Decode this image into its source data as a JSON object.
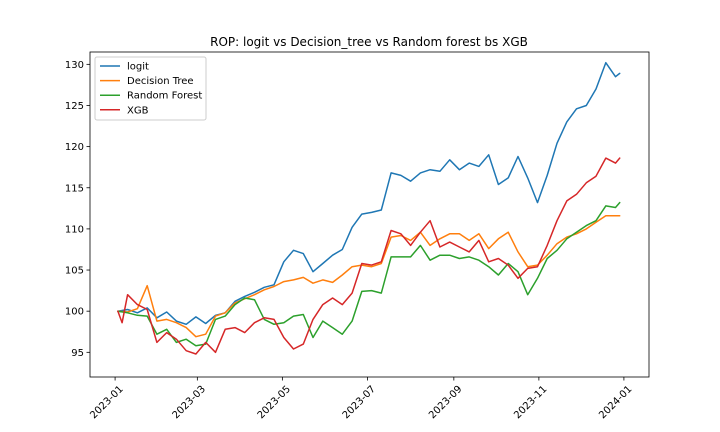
{
  "chart_data": {
    "type": "line",
    "title": "ROP: logit vs Decision_tree vs Random forest bs XGB",
    "xlabel": "",
    "ylabel": "",
    "x_ticks": [
      "2023-01",
      "2023-03",
      "2023-05",
      "2023-07",
      "2023-09",
      "2023-11",
      "2024-01"
    ],
    "y_ticks": [
      95,
      100,
      105,
      110,
      115,
      120,
      125,
      130
    ],
    "xlim": [
      "2022-12-14",
      "2024-01-19"
    ],
    "ylim": [
      92,
      131.5
    ],
    "grid": false,
    "legend_position": "upper-left",
    "series": [
      {
        "name": "logit",
        "color": "#1f77b4",
        "points": [
          [
            "2023-01-03",
            100.0
          ],
          [
            "2023-01-10",
            100.2
          ],
          [
            "2023-01-17",
            99.8
          ],
          [
            "2023-01-24",
            100.4
          ],
          [
            "2023-01-31",
            99.2
          ],
          [
            "2023-02-07",
            99.9
          ],
          [
            "2023-02-14",
            98.8
          ],
          [
            "2023-02-21",
            98.4
          ],
          [
            "2023-02-28",
            99.3
          ],
          [
            "2023-03-07",
            98.5
          ],
          [
            "2023-03-14",
            99.5
          ],
          [
            "2023-03-21",
            99.8
          ],
          [
            "2023-03-28",
            101.2
          ],
          [
            "2023-04-04",
            101.8
          ],
          [
            "2023-04-11",
            102.3
          ],
          [
            "2023-04-18",
            102.9
          ],
          [
            "2023-04-25",
            103.2
          ],
          [
            "2023-05-02",
            106.0
          ],
          [
            "2023-05-09",
            107.4
          ],
          [
            "2023-05-16",
            107.0
          ],
          [
            "2023-05-23",
            104.8
          ],
          [
            "2023-05-30",
            105.8
          ],
          [
            "2023-06-06",
            106.8
          ],
          [
            "2023-06-13",
            107.5
          ],
          [
            "2023-06-20",
            110.2
          ],
          [
            "2023-06-27",
            111.8
          ],
          [
            "2023-07-04",
            112.0
          ],
          [
            "2023-07-11",
            112.3
          ],
          [
            "2023-07-18",
            116.8
          ],
          [
            "2023-07-25",
            116.5
          ],
          [
            "2023-08-01",
            115.8
          ],
          [
            "2023-08-08",
            116.8
          ],
          [
            "2023-08-15",
            117.2
          ],
          [
            "2023-08-22",
            117.0
          ],
          [
            "2023-08-29",
            118.4
          ],
          [
            "2023-09-05",
            117.2
          ],
          [
            "2023-09-12",
            118.0
          ],
          [
            "2023-09-19",
            117.6
          ],
          [
            "2023-09-26",
            119.0
          ],
          [
            "2023-10-03",
            115.4
          ],
          [
            "2023-10-10",
            116.2
          ],
          [
            "2023-10-17",
            118.8
          ],
          [
            "2023-10-24",
            116.2
          ],
          [
            "2023-10-31",
            113.2
          ],
          [
            "2023-11-07",
            116.5
          ],
          [
            "2023-11-14",
            120.4
          ],
          [
            "2023-11-21",
            123.0
          ],
          [
            "2023-11-28",
            124.6
          ],
          [
            "2023-12-05",
            125.0
          ],
          [
            "2023-12-12",
            127.0
          ],
          [
            "2023-12-19",
            130.2
          ],
          [
            "2023-12-26",
            128.5
          ],
          [
            "2023-12-29",
            128.9
          ]
        ]
      },
      {
        "name": "Decision Tree",
        "color": "#ff7f0e",
        "points": [
          [
            "2023-01-03",
            100.0
          ],
          [
            "2023-01-10",
            99.9
          ],
          [
            "2023-01-17",
            100.3
          ],
          [
            "2023-01-24",
            103.1
          ],
          [
            "2023-01-31",
            98.8
          ],
          [
            "2023-02-07",
            99.0
          ],
          [
            "2023-02-14",
            98.6
          ],
          [
            "2023-02-21",
            98.0
          ],
          [
            "2023-02-28",
            96.9
          ],
          [
            "2023-03-07",
            97.2
          ],
          [
            "2023-03-14",
            99.4
          ],
          [
            "2023-03-21",
            99.8
          ],
          [
            "2023-03-28",
            101.0
          ],
          [
            "2023-04-04",
            101.5
          ],
          [
            "2023-04-11",
            102.0
          ],
          [
            "2023-04-18",
            102.6
          ],
          [
            "2023-04-25",
            103.0
          ],
          [
            "2023-05-02",
            103.6
          ],
          [
            "2023-05-09",
            103.8
          ],
          [
            "2023-05-16",
            104.1
          ],
          [
            "2023-05-23",
            103.4
          ],
          [
            "2023-05-30",
            103.8
          ],
          [
            "2023-06-06",
            103.5
          ],
          [
            "2023-06-13",
            104.4
          ],
          [
            "2023-06-20",
            105.4
          ],
          [
            "2023-06-27",
            105.6
          ],
          [
            "2023-07-04",
            105.4
          ],
          [
            "2023-07-11",
            105.8
          ],
          [
            "2023-07-18",
            109.0
          ],
          [
            "2023-07-25",
            109.2
          ],
          [
            "2023-08-01",
            108.6
          ],
          [
            "2023-08-08",
            109.6
          ],
          [
            "2023-08-15",
            108.0
          ],
          [
            "2023-08-22",
            108.8
          ],
          [
            "2023-08-29",
            109.4
          ],
          [
            "2023-09-05",
            109.4
          ],
          [
            "2023-09-12",
            108.6
          ],
          [
            "2023-09-19",
            109.4
          ],
          [
            "2023-09-26",
            107.6
          ],
          [
            "2023-10-03",
            108.8
          ],
          [
            "2023-10-10",
            109.6
          ],
          [
            "2023-10-17",
            107.2
          ],
          [
            "2023-10-24",
            105.4
          ],
          [
            "2023-10-31",
            105.6
          ],
          [
            "2023-11-07",
            106.8
          ],
          [
            "2023-11-14",
            108.2
          ],
          [
            "2023-11-21",
            109.0
          ],
          [
            "2023-11-28",
            109.4
          ],
          [
            "2023-12-05",
            110.0
          ],
          [
            "2023-12-12",
            110.8
          ],
          [
            "2023-12-19",
            111.6
          ],
          [
            "2023-12-26",
            111.6
          ],
          [
            "2023-12-29",
            111.6
          ]
        ]
      },
      {
        "name": "Random Forest",
        "color": "#2ca02c",
        "points": [
          [
            "2023-01-03",
            100.0
          ],
          [
            "2023-01-10",
            99.8
          ],
          [
            "2023-01-17",
            99.5
          ],
          [
            "2023-01-24",
            99.4
          ],
          [
            "2023-01-31",
            97.2
          ],
          [
            "2023-02-07",
            97.8
          ],
          [
            "2023-02-14",
            96.2
          ],
          [
            "2023-02-21",
            96.6
          ],
          [
            "2023-02-28",
            95.8
          ],
          [
            "2023-03-07",
            96.0
          ],
          [
            "2023-03-14",
            99.0
          ],
          [
            "2023-03-21",
            99.4
          ],
          [
            "2023-03-28",
            100.8
          ],
          [
            "2023-04-04",
            101.6
          ],
          [
            "2023-04-11",
            101.4
          ],
          [
            "2023-04-18",
            99.0
          ],
          [
            "2023-04-25",
            98.4
          ],
          [
            "2023-05-02",
            98.6
          ],
          [
            "2023-05-09",
            99.4
          ],
          [
            "2023-05-16",
            99.6
          ],
          [
            "2023-05-23",
            96.8
          ],
          [
            "2023-05-30",
            98.8
          ],
          [
            "2023-06-06",
            98.0
          ],
          [
            "2023-06-13",
            97.2
          ],
          [
            "2023-06-20",
            98.8
          ],
          [
            "2023-06-27",
            102.4
          ],
          [
            "2023-07-04",
            102.5
          ],
          [
            "2023-07-11",
            102.2
          ],
          [
            "2023-07-18",
            106.6
          ],
          [
            "2023-07-25",
            106.6
          ],
          [
            "2023-08-01",
            106.6
          ],
          [
            "2023-08-08",
            108.0
          ],
          [
            "2023-08-15",
            106.2
          ],
          [
            "2023-08-22",
            106.8
          ],
          [
            "2023-08-29",
            106.8
          ],
          [
            "2023-09-05",
            106.4
          ],
          [
            "2023-09-12",
            106.6
          ],
          [
            "2023-09-19",
            106.2
          ],
          [
            "2023-09-26",
            105.4
          ],
          [
            "2023-10-03",
            104.4
          ],
          [
            "2023-10-10",
            105.8
          ],
          [
            "2023-10-17",
            104.8
          ],
          [
            "2023-10-24",
            102.0
          ],
          [
            "2023-10-31",
            104.0
          ],
          [
            "2023-11-07",
            106.4
          ],
          [
            "2023-11-14",
            107.4
          ],
          [
            "2023-11-21",
            108.8
          ],
          [
            "2023-11-28",
            109.6
          ],
          [
            "2023-12-05",
            110.4
          ],
          [
            "2023-12-12",
            111.0
          ],
          [
            "2023-12-19",
            112.8
          ],
          [
            "2023-12-26",
            112.6
          ],
          [
            "2023-12-29",
            113.2
          ]
        ]
      },
      {
        "name": "XGB",
        "color": "#d62728",
        "points": [
          [
            "2023-01-03",
            100.0
          ],
          [
            "2023-01-06",
            98.6
          ],
          [
            "2023-01-10",
            102.0
          ],
          [
            "2023-01-17",
            100.8
          ],
          [
            "2023-01-24",
            100.2
          ],
          [
            "2023-01-31",
            96.2
          ],
          [
            "2023-02-07",
            97.4
          ],
          [
            "2023-02-14",
            96.6
          ],
          [
            "2023-02-21",
            95.2
          ],
          [
            "2023-02-28",
            94.8
          ],
          [
            "2023-03-07",
            96.2
          ],
          [
            "2023-03-14",
            95.0
          ],
          [
            "2023-03-21",
            97.8
          ],
          [
            "2023-03-28",
            98.0
          ],
          [
            "2023-04-04",
            97.4
          ],
          [
            "2023-04-11",
            98.6
          ],
          [
            "2023-04-18",
            99.2
          ],
          [
            "2023-04-25",
            99.0
          ],
          [
            "2023-05-02",
            96.8
          ],
          [
            "2023-05-09",
            95.4
          ],
          [
            "2023-05-16",
            96.0
          ],
          [
            "2023-05-23",
            99.0
          ],
          [
            "2023-05-30",
            100.8
          ],
          [
            "2023-06-06",
            101.6
          ],
          [
            "2023-06-13",
            100.8
          ],
          [
            "2023-06-20",
            102.2
          ],
          [
            "2023-06-27",
            105.8
          ],
          [
            "2023-07-04",
            105.6
          ],
          [
            "2023-07-11",
            106.0
          ],
          [
            "2023-07-18",
            109.8
          ],
          [
            "2023-07-25",
            109.4
          ],
          [
            "2023-08-01",
            108.0
          ],
          [
            "2023-08-08",
            109.6
          ],
          [
            "2023-08-15",
            111.0
          ],
          [
            "2023-08-22",
            107.8
          ],
          [
            "2023-08-29",
            108.4
          ],
          [
            "2023-09-05",
            107.8
          ],
          [
            "2023-09-12",
            107.2
          ],
          [
            "2023-09-19",
            108.6
          ],
          [
            "2023-09-26",
            106.0
          ],
          [
            "2023-10-03",
            106.4
          ],
          [
            "2023-10-10",
            105.6
          ],
          [
            "2023-10-17",
            104.0
          ],
          [
            "2023-10-24",
            105.2
          ],
          [
            "2023-10-31",
            105.4
          ],
          [
            "2023-11-07",
            108.0
          ],
          [
            "2023-11-14",
            111.0
          ],
          [
            "2023-11-21",
            113.4
          ],
          [
            "2023-11-28",
            114.2
          ],
          [
            "2023-12-05",
            115.6
          ],
          [
            "2023-12-12",
            116.4
          ],
          [
            "2023-12-19",
            118.6
          ],
          [
            "2023-12-26",
            118.0
          ],
          [
            "2023-12-29",
            118.6
          ]
        ]
      }
    ]
  }
}
